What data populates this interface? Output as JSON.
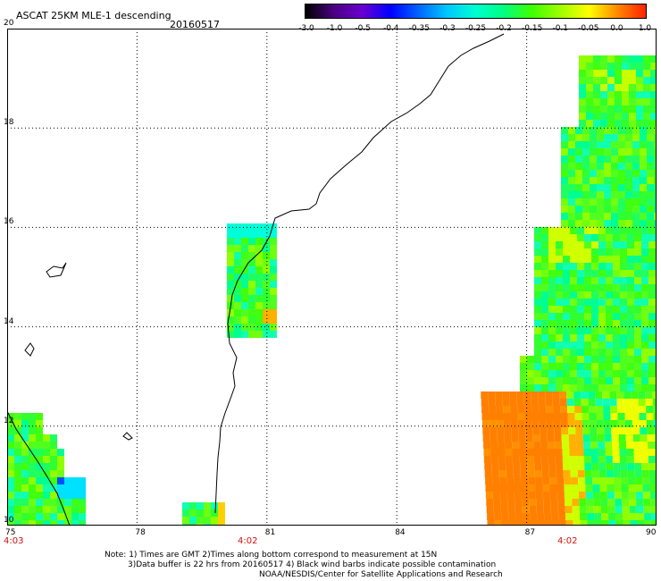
{
  "header": {
    "title": "ASCAT 25KM MLE-1 descending",
    "date": "20160517"
  },
  "legend": {
    "ticks": [
      "-3.0",
      "-1.0",
      "-0.5",
      "-0.4",
      "-0.35",
      "-0.3",
      "-0.25",
      "-0.2",
      "-0.15",
      "-0.1",
      "-0.05",
      "0.0",
      "1.0"
    ],
    "colors": [
      "#000000",
      "#4b0082",
      "#6a00d0",
      "#0000ff",
      "#0066ff",
      "#00c8ff",
      "#00ffd0",
      "#00ff80",
      "#40ff00",
      "#a0ff00",
      "#ffff00",
      "#ff8800",
      "#ff2000"
    ]
  },
  "map": {
    "x_axis": {
      "min": 75,
      "max": 90,
      "ticks": [
        "75",
        "78",
        "81",
        "84",
        "87",
        "90"
      ]
    },
    "y_axis": {
      "min": 10,
      "max": 20,
      "ticks": [
        "10",
        "12",
        "14",
        "16",
        "18",
        "20"
      ]
    },
    "time_labels": [
      "4:03",
      "4:02",
      "4:02"
    ]
  },
  "notes": {
    "line1": "Note: 1) Times are GMT 2)Times along bottom correspond to measurement at 15N",
    "line2": "3)Data buffer is 22 hrs from 20160517 4) Black wind barbs indicate possible contamination",
    "line3": "NOAA/NESDIS/Center for Satellite Applications and Research"
  }
}
